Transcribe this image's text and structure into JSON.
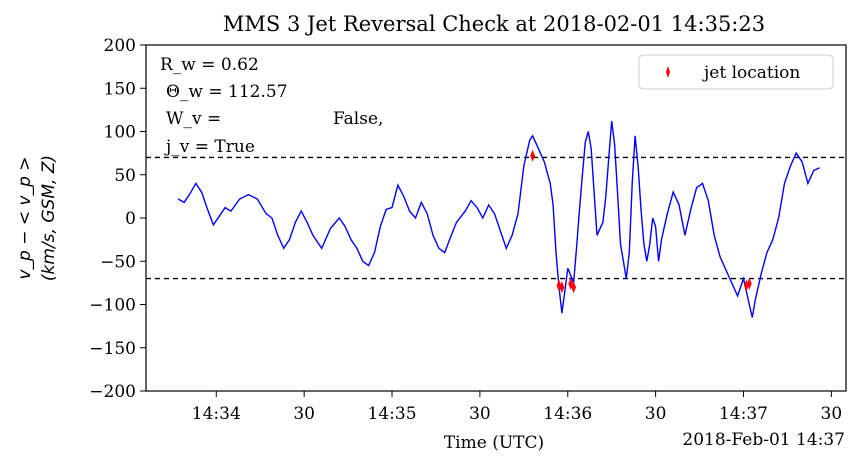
{
  "chart_data": {
    "type": "line",
    "title": "MMS 3 Jet Reversal Check at 2018-02-01 14:35:23",
    "xlabel": "Time (UTC)",
    "x_offset_label": "2018-Feb-01 14:37",
    "ylabel_line1": "v_p − < v_p >",
    "ylabel_line2": "(km/s, GSM, Z)",
    "ylim": [
      -200,
      200
    ],
    "yticks": [
      -200,
      -150,
      -100,
      -50,
      0,
      50,
      100,
      150,
      200
    ],
    "ytick_labels": [
      "−200",
      "−150",
      "−100",
      "−50",
      "0",
      "50",
      "100",
      "150",
      "200"
    ],
    "xlim": [
      "14:33:36",
      "14:37:35"
    ],
    "xticks": [
      "14:34:00",
      "14:34:30",
      "14:35:00",
      "14:35:30",
      "14:36:00",
      "14:36:30",
      "14:37:00",
      "14:37:30"
    ],
    "xtick_labels": [
      "14:34",
      "30",
      "14:35",
      "30",
      "14:36",
      "30",
      "14:37",
      "30"
    ],
    "thresholds": [
      70,
      -70
    ],
    "grid": false,
    "legend_position": "top-right",
    "annotations": {
      "rw": "R_w = 0.62",
      "theta": "Θ_w = 112.57",
      "wv_label": "W_v =",
      "wv_value": "False,",
      "jv": "j_v = True"
    },
    "series": [
      {
        "name": "",
        "color": "#0000ff",
        "points": [
          [
            "14:33:47",
            22
          ],
          [
            "14:33:49",
            18
          ],
          [
            "14:33:51",
            28
          ],
          [
            "14:33:53",
            40
          ],
          [
            "14:33:55",
            30
          ],
          [
            "14:33:57",
            10
          ],
          [
            "14:33:59",
            -8
          ],
          [
            "14:34:01",
            2
          ],
          [
            "14:34:03",
            12
          ],
          [
            "14:34:05",
            8
          ],
          [
            "14:34:08",
            22
          ],
          [
            "14:34:11",
            27
          ],
          [
            "14:34:14",
            22
          ],
          [
            "14:34:17",
            5
          ],
          [
            "14:34:19",
            0
          ],
          [
            "14:34:21",
            -20
          ],
          [
            "14:34:23",
            -35
          ],
          [
            "14:34:25",
            -25
          ],
          [
            "14:34:27",
            -5
          ],
          [
            "14:34:29",
            8
          ],
          [
            "14:34:31",
            -5
          ],
          [
            "14:34:33",
            -20
          ],
          [
            "14:34:36",
            -35
          ],
          [
            "14:34:39",
            -12
          ],
          [
            "14:34:42",
            0
          ],
          [
            "14:34:44",
            -10
          ],
          [
            "14:34:46",
            -25
          ],
          [
            "14:34:48",
            -35
          ],
          [
            "14:34:50",
            -50
          ],
          [
            "14:34:52",
            -55
          ],
          [
            "14:34:54",
            -40
          ],
          [
            "14:34:56",
            -10
          ],
          [
            "14:34:58",
            10
          ],
          [
            "14:35:00",
            12
          ],
          [
            "14:35:02",
            38
          ],
          [
            "14:35:04",
            25
          ],
          [
            "14:35:06",
            8
          ],
          [
            "14:35:08",
            0
          ],
          [
            "14:35:10",
            18
          ],
          [
            "14:35:12",
            5
          ],
          [
            "14:35:14",
            -20
          ],
          [
            "14:35:16",
            -35
          ],
          [
            "14:35:18",
            -40
          ],
          [
            "14:35:20",
            -22
          ],
          [
            "14:35:22",
            -5
          ],
          [
            "14:35:25",
            8
          ],
          [
            "14:35:27",
            20
          ],
          [
            "14:35:29",
            12
          ],
          [
            "14:35:31",
            0
          ],
          [
            "14:35:33",
            15
          ],
          [
            "14:35:35",
            5
          ],
          [
            "14:35:37",
            -15
          ],
          [
            "14:35:39",
            -35
          ],
          [
            "14:35:41",
            -20
          ],
          [
            "14:35:43",
            5
          ],
          [
            "14:35:45",
            60
          ],
          [
            "14:35:47",
            90
          ],
          [
            "14:35:48",
            95
          ],
          [
            "14:35:50",
            80
          ],
          [
            "14:35:52",
            65
          ],
          [
            "14:35:54",
            40
          ],
          [
            "14:35:55",
            15
          ],
          [
            "14:35:56",
            -40
          ],
          [
            "14:35:57",
            -80
          ],
          [
            "14:35:58",
            -110
          ],
          [
            "14:35:59",
            -85
          ],
          [
            "14:36:00",
            -58
          ],
          [
            "14:36:02",
            -75
          ],
          [
            "14:36:03",
            -35
          ],
          [
            "14:36:04",
            10
          ],
          [
            "14:36:05",
            50
          ],
          [
            "14:36:06",
            88
          ],
          [
            "14:36:07",
            100
          ],
          [
            "14:36:08",
            80
          ],
          [
            "14:36:09",
            30
          ],
          [
            "14:36:10",
            -20
          ],
          [
            "14:36:12",
            -5
          ],
          [
            "14:36:13",
            25
          ],
          [
            "14:36:14",
            70
          ],
          [
            "14:36:15",
            112
          ],
          [
            "14:36:16",
            85
          ],
          [
            "14:36:17",
            30
          ],
          [
            "14:36:18",
            -30
          ],
          [
            "14:36:20",
            -70
          ],
          [
            "14:36:21",
            -40
          ],
          [
            "14:36:22",
            40
          ],
          [
            "14:36:23",
            95
          ],
          [
            "14:36:24",
            60
          ],
          [
            "14:36:25",
            10
          ],
          [
            "14:36:26",
            -30
          ],
          [
            "14:36:27",
            -50
          ],
          [
            "14:36:28",
            -30
          ],
          [
            "14:36:29",
            0
          ],
          [
            "14:36:30",
            -10
          ],
          [
            "14:36:31",
            -50
          ],
          [
            "14:36:32",
            -25
          ],
          [
            "14:36:34",
            5
          ],
          [
            "14:36:36",
            30
          ],
          [
            "14:36:38",
            15
          ],
          [
            "14:36:40",
            -20
          ],
          [
            "14:36:42",
            10
          ],
          [
            "14:36:44",
            35
          ],
          [
            "14:36:46",
            40
          ],
          [
            "14:36:48",
            20
          ],
          [
            "14:36:50",
            -20
          ],
          [
            "14:36:52",
            -45
          ],
          [
            "14:36:54",
            -60
          ],
          [
            "14:36:56",
            -75
          ],
          [
            "14:36:58",
            -90
          ],
          [
            "14:37:00",
            -70
          ],
          [
            "14:37:02",
            -100
          ],
          [
            "14:37:03",
            -115
          ],
          [
            "14:37:04",
            -95
          ],
          [
            "14:37:06",
            -65
          ],
          [
            "14:37:08",
            -40
          ],
          [
            "14:37:10",
            -25
          ],
          [
            "14:37:12",
            0
          ],
          [
            "14:37:14",
            40
          ],
          [
            "14:37:16",
            60
          ],
          [
            "14:37:18",
            75
          ],
          [
            "14:37:20",
            65
          ],
          [
            "14:37:22",
            40
          ],
          [
            "14:37:24",
            55
          ],
          [
            "14:37:26",
            58
          ]
        ]
      },
      {
        "name": "jet location",
        "type": "scatter",
        "color": "#ff0000",
        "marker": "thin_diamond",
        "points": [
          [
            "14:35:48",
            72
          ],
          [
            "14:35:57",
            -78
          ],
          [
            "14:35:58",
            -80
          ],
          [
            "14:36:01",
            -76
          ],
          [
            "14:36:02",
            -80
          ],
          [
            "14:37:01",
            -78
          ],
          [
            "14:37:02",
            -76
          ]
        ]
      }
    ]
  }
}
